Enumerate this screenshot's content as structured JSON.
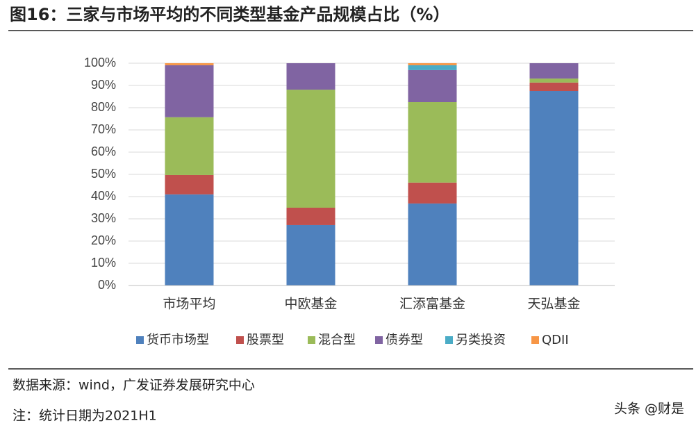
{
  "chart_data": {
    "type": "stacked_bar",
    "title": "图16：三家与市场平均的不同类型基金产品规模占比（%）",
    "categories": [
      "市场平均",
      "中欧基金",
      "汇添富基金",
      "天弘基金"
    ],
    "series": [
      {
        "name": "货币市场型",
        "color": "#4f81bd",
        "values": [
          41,
          27.2,
          36.9,
          87.5
        ]
      },
      {
        "name": "股票型",
        "color": "#c0504d",
        "values": [
          8.7,
          7.8,
          9.4,
          3.8
        ]
      },
      {
        "name": "混合型",
        "color": "#9bbb59",
        "values": [
          26,
          53.1,
          36.2,
          1.8
        ]
      },
      {
        "name": "债券型",
        "color": "#8064a2",
        "values": [
          23.4,
          11.9,
          14.4,
          6.9
        ]
      },
      {
        "name": "另类投资",
        "color": "#4bacc6",
        "values": [
          0,
          0,
          2.2,
          0
        ]
      },
      {
        "name": "QDII",
        "color": "#f79646",
        "values": [
          0.9,
          0,
          0.9,
          0
        ]
      }
    ],
    "ylim": [
      0,
      100
    ],
    "yticks": [
      {
        "value": 0,
        "label": "0%"
      },
      {
        "value": 10,
        "label": "10%"
      },
      {
        "value": 20,
        "label": "20%"
      },
      {
        "value": 30,
        "label": "30%"
      },
      {
        "value": 40,
        "label": "40%"
      },
      {
        "value": 50,
        "label": "50%"
      },
      {
        "value": 60,
        "label": "60%"
      },
      {
        "value": 70,
        "label": "70%"
      },
      {
        "value": 80,
        "label": "80%"
      },
      {
        "value": 90,
        "label": "90%"
      },
      {
        "value": 100,
        "label": "100%"
      }
    ],
    "grid": true,
    "legend": "bottom"
  },
  "source": "数据来源：wind，广发证券发展研究中心",
  "note": "注：统计日期为2021H1",
  "watermark": "头条 @财是"
}
